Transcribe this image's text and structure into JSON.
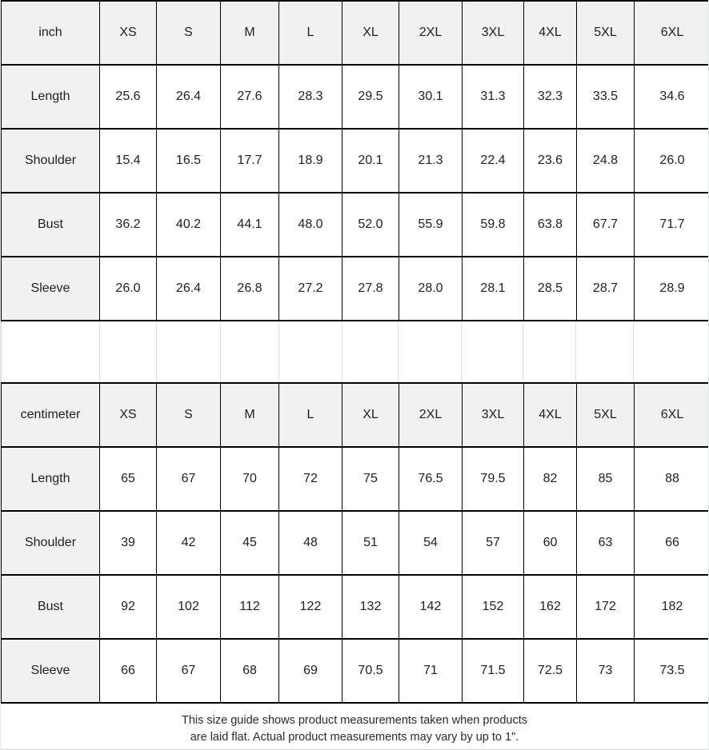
{
  "tables": [
    {
      "unit": "inch",
      "sizes": [
        "XS",
        "S",
        "M",
        "L",
        "XL",
        "2XL",
        "3XL",
        "4XL",
        "5XL",
        "6XL"
      ],
      "rows": [
        {
          "label": "Length",
          "values": [
            "25.6",
            "26.4",
            "27.6",
            "28.3",
            "29.5",
            "30.1",
            "31.3",
            "32.3",
            "33.5",
            "34.6"
          ]
        },
        {
          "label": "Shoulder",
          "values": [
            "15.4",
            "16.5",
            "17.7",
            "18.9",
            "20.1",
            "21.3",
            "22.4",
            "23.6",
            "24.8",
            "26.0"
          ]
        },
        {
          "label": "Bust",
          "values": [
            "36.2",
            "40.2",
            "44.1",
            "48.0",
            "52.0",
            "55.9",
            "59.8",
            "63.8",
            "67.7",
            "71.7"
          ]
        },
        {
          "label": "Sleeve",
          "values": [
            "26.0",
            "26.4",
            "26.8",
            "27.2",
            "27.8",
            "28.0",
            "28.1",
            "28.5",
            "28.7",
            "28.9"
          ]
        }
      ]
    },
    {
      "unit": "centimeter",
      "sizes": [
        "XS",
        "S",
        "M",
        "L",
        "XL",
        "2XL",
        "3XL",
        "4XL",
        "5XL",
        "6XL"
      ],
      "rows": [
        {
          "label": "Length",
          "values": [
            "65",
            "67",
            "70",
            "72",
            "75",
            "76.5",
            "79.5",
            "82",
            "85",
            "88"
          ]
        },
        {
          "label": "Shoulder",
          "values": [
            "39",
            "42",
            "45",
            "48",
            "51",
            "54",
            "57",
            "60",
            "63",
            "66"
          ]
        },
        {
          "label": "Bust",
          "values": [
            "92",
            "102",
            "112",
            "122",
            "132",
            "142",
            "152",
            "162",
            "172",
            "182"
          ]
        },
        {
          "label": "Sleeve",
          "values": [
            "66",
            "67",
            "68",
            "69",
            "70.5",
            "71",
            "71.5",
            "72.5",
            "73",
            "73.5"
          ]
        }
      ]
    }
  ],
  "footer": {
    "line1": "This size guide shows product measurements taken when products",
    "line2": "are laid flat. Actual product measurements may vary by up to 1\"."
  },
  "colors": {
    "header_bg": "#f1f1f1",
    "table_border": "#000000",
    "spacer_line": "#dcdcdc",
    "page_edge": "#ccd5dc"
  }
}
